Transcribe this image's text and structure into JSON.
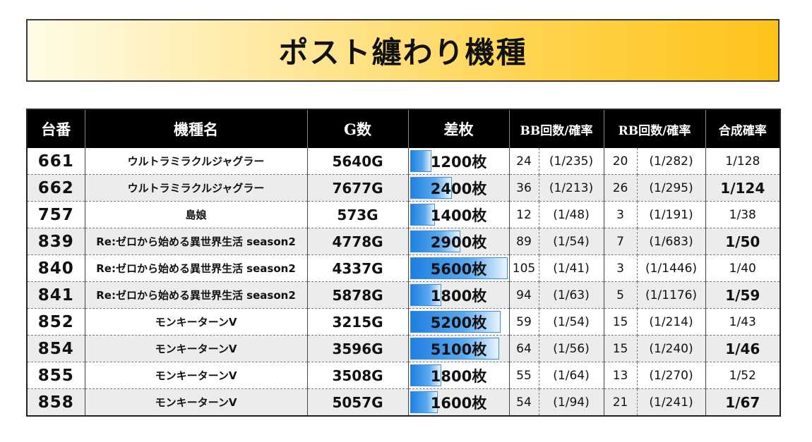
{
  "title": "ポスト纏わり機種",
  "headers": {
    "no": "台番",
    "name": "機種名",
    "games": "G数",
    "diff": "差枚",
    "bb": "BB回数/確率",
    "rb": "RB回数/確率",
    "combined": "合成確率"
  },
  "diff_max": 5600,
  "rows": [
    {
      "no": "661",
      "name": "ウルトラミラクルジャグラー",
      "games": "5640G",
      "diff": "1200枚",
      "diff_value": 1200,
      "bb": "24",
      "bb_rate": "(1/235)",
      "rb": "20",
      "rb_rate": "(1/282)",
      "combined": "1/128"
    },
    {
      "no": "662",
      "name": "ウルトラミラクルジャグラー",
      "games": "7677G",
      "diff": "2400枚",
      "diff_value": 2400,
      "bb": "36",
      "bb_rate": "(1/213)",
      "rb": "26",
      "rb_rate": "(1/295)",
      "combined": "1/124"
    },
    {
      "no": "757",
      "name": "島娘",
      "games": "573G",
      "diff": "1400枚",
      "diff_value": 1400,
      "bb": "12",
      "bb_rate": "(1/48)",
      "rb": "3",
      "rb_rate": "(1/191)",
      "combined": "1/38"
    },
    {
      "no": "839",
      "name": "Re:ゼロから始める異世界生活 season2",
      "games": "4778G",
      "diff": "2900枚",
      "diff_value": 2900,
      "bb": "89",
      "bb_rate": "(1/54)",
      "rb": "7",
      "rb_rate": "(1/683)",
      "combined": "1/50"
    },
    {
      "no": "840",
      "name": "Re:ゼロから始める異世界生活 season2",
      "games": "4337G",
      "diff": "5600枚",
      "diff_value": 5600,
      "bb": "105",
      "bb_rate": "(1/41)",
      "rb": "3",
      "rb_rate": "(1/1446)",
      "combined": "1/40"
    },
    {
      "no": "841",
      "name": "Re:ゼロから始める異世界生活 season2",
      "games": "5878G",
      "diff": "1800枚",
      "diff_value": 1800,
      "bb": "94",
      "bb_rate": "(1/63)",
      "rb": "5",
      "rb_rate": "(1/1176)",
      "combined": "1/59"
    },
    {
      "no": "852",
      "name": "モンキーターンV",
      "games": "3215G",
      "diff": "5200枚",
      "diff_value": 5200,
      "bb": "59",
      "bb_rate": "(1/54)",
      "rb": "15",
      "rb_rate": "(1/214)",
      "combined": "1/43"
    },
    {
      "no": "854",
      "name": "モンキーターンV",
      "games": "3596G",
      "diff": "5100枚",
      "diff_value": 5100,
      "bb": "64",
      "bb_rate": "(1/56)",
      "rb": "15",
      "rb_rate": "(1/240)",
      "combined": "1/46"
    },
    {
      "no": "855",
      "name": "モンキーターンV",
      "games": "3508G",
      "diff": "1800枚",
      "diff_value": 1800,
      "bb": "55",
      "bb_rate": "(1/64)",
      "rb": "13",
      "rb_rate": "(1/270)",
      "combined": "1/52"
    },
    {
      "no": "858",
      "name": "モンキーターンV",
      "games": "5057G",
      "diff": "1600枚",
      "diff_value": 1600,
      "bb": "54",
      "bb_rate": "(1/94)",
      "rb": "21",
      "rb_rate": "(1/241)",
      "combined": "1/67"
    }
  ]
}
